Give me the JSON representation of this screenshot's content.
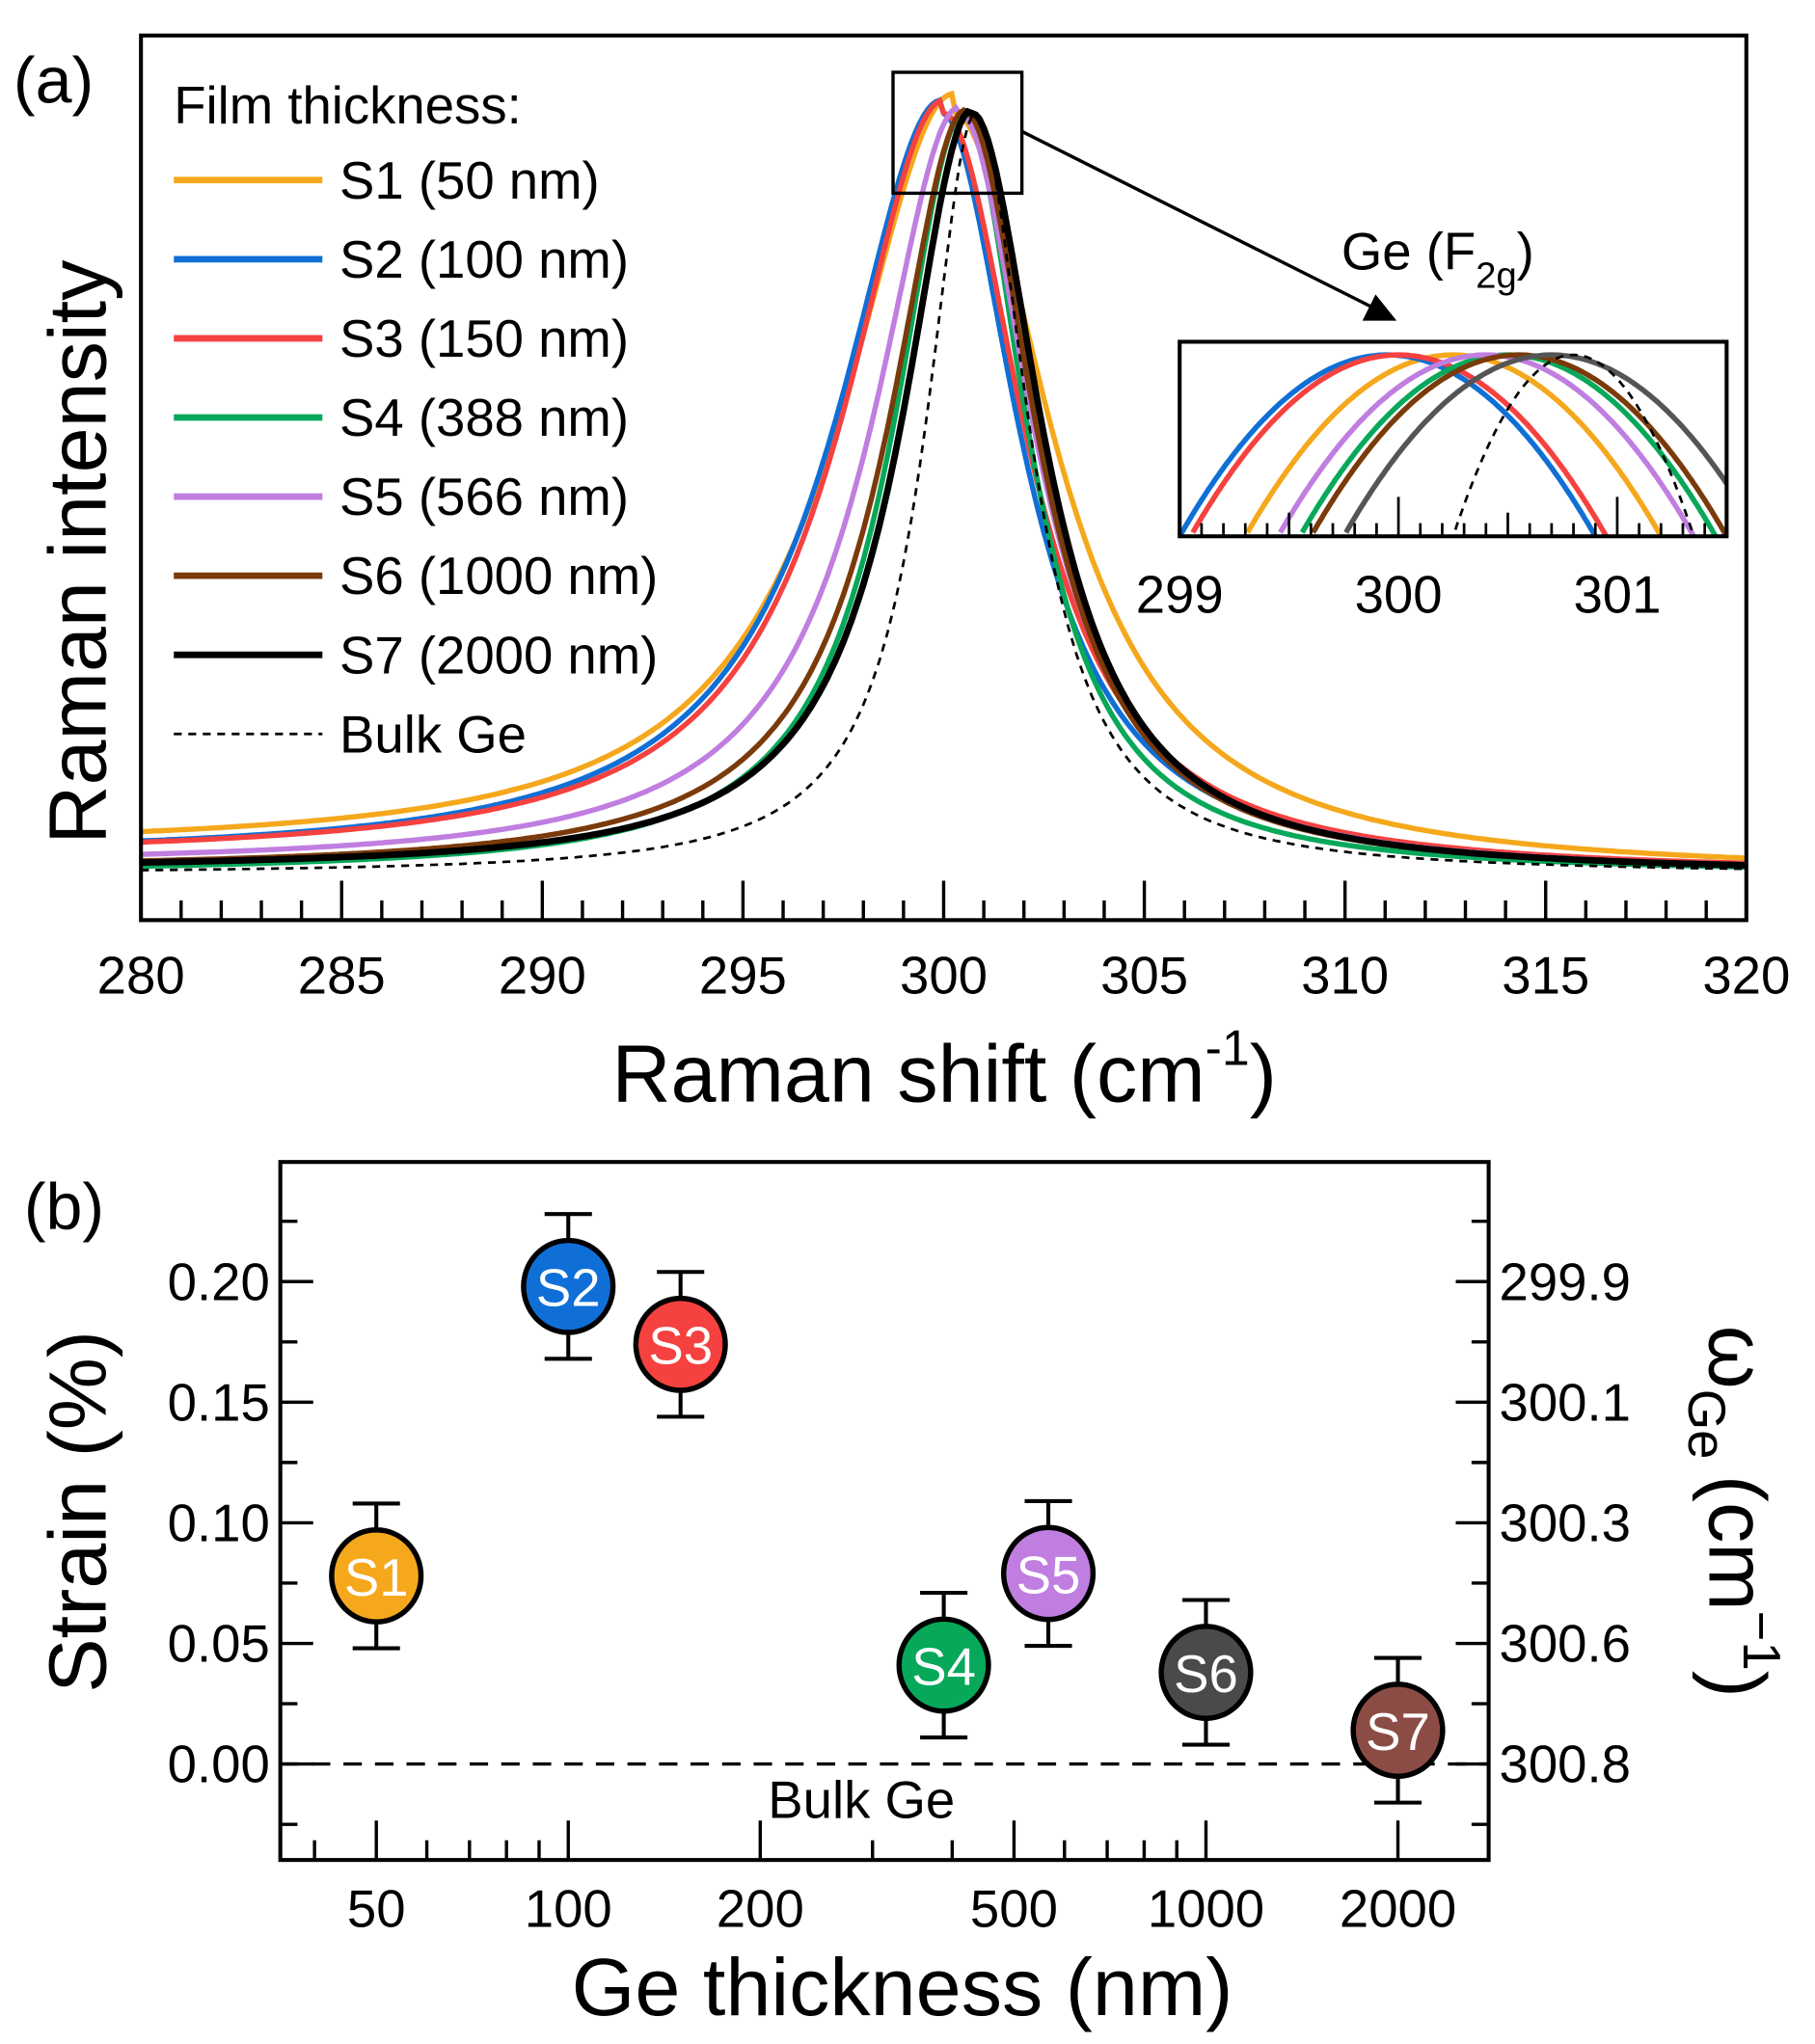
{
  "chart_data": [
    {
      "type": "line",
      "panel_label": "(a)",
      "xlabel": "Raman shift (cm",
      "xlabel_sup": "-1",
      "xlabel_close": ")",
      "ylabel": "Raman intensity",
      "xlim": [
        280,
        320
      ],
      "xticks": [
        "280",
        "285",
        "290",
        "295",
        "300",
        "305",
        "310",
        "315",
        "320"
      ],
      "legend_title": "Film thickness:",
      "legend_placement": "top-left",
      "series": [
        {
          "name": "S1 (50 nm)",
          "color": "#f5a81c",
          "peak": 300.25,
          "hwhm_left": 3.3,
          "hwhm_right": 2.9,
          "base_left": 0.03,
          "dash": false
        },
        {
          "name": "S2 (100 nm)",
          "color": "#0f6fd6",
          "peak": 299.95,
          "hwhm_left": 3.1,
          "hwhm_right": 2.3,
          "base_left": 0.02,
          "dash": false
        },
        {
          "name": "S3 (150 nm)",
          "color": "#f5413f",
          "peak": 300.0,
          "hwhm_left": 3.0,
          "hwhm_right": 2.4,
          "base_left": 0.02,
          "dash": false
        },
        {
          "name": "S4 (388 nm)",
          "color": "#07a85a",
          "peak": 300.5,
          "hwhm_left": 2.1,
          "hwhm_right": 1.9,
          "base_left": 0.0,
          "dash": false
        },
        {
          "name": "S5 (566 nm)",
          "color": "#c07ee0",
          "peak": 300.4,
          "hwhm_left": 2.6,
          "hwhm_right": 2.2,
          "base_left": 0.01,
          "dash": false
        },
        {
          "name": "S6 (1000 nm)",
          "color": "#7a3a0a",
          "peak": 300.55,
          "hwhm_left": 2.3,
          "hwhm_right": 2.1,
          "base_left": 0.005,
          "dash": false
        },
        {
          "name": "S7 (2000 nm)",
          "color": "#000000",
          "peak": 300.7,
          "hwhm_left": 2.1,
          "hwhm_right": 2.1,
          "base_left": 0.005,
          "dash": false,
          "inset_color": "#555555"
        },
        {
          "name": "Bulk Ge",
          "color": "#000000",
          "peak": 300.8,
          "hwhm_left": 1.5,
          "hwhm_right": 1.6,
          "base_left": 0.0,
          "dash": true
        }
      ],
      "inset": {
        "title": "Ge (F",
        "title_sub": "2g",
        "title_close": ")",
        "xlim": [
          299,
          301.5
        ],
        "xticks": [
          "299",
          "300",
          "301"
        ]
      }
    },
    {
      "type": "scatter",
      "panel_label": "(b)",
      "xlabel": "Ge thickness (nm)",
      "ylabel": "Strain (%)",
      "y2label": "ω",
      "y2label_sub": "Ge",
      "y2label_unit": "(cm",
      "y2label_sup": "−1",
      "y2label_close": ")",
      "xscale": "log",
      "xlim": [
        35,
        3000
      ],
      "ylim": [
        -0.025,
        0.245
      ],
      "xticks": [
        "50",
        "100",
        "200",
        "500",
        "1000",
        "2000"
      ],
      "yticks": [
        "0.00",
        "0.05",
        "0.10",
        "0.15",
        "0.20"
      ],
      "y2ticks": [
        "300.8",
        "300.6",
        "300.3",
        "300.1",
        "299.9"
      ],
      "reference_label": "Bulk Ge",
      "reference_value": 0.0,
      "points": [
        {
          "label": "S1",
          "x": 50,
          "y": 0.078,
          "err": 0.03,
          "color": "#f5a81c"
        },
        {
          "label": "S2",
          "x": 100,
          "y": 0.198,
          "err": 0.03,
          "color": "#0f6fd6"
        },
        {
          "label": "S3",
          "x": 150,
          "y": 0.174,
          "err": 0.03,
          "color": "#f5413f"
        },
        {
          "label": "S4",
          "x": 388,
          "y": 0.041,
          "err": 0.03,
          "color": "#07a85a"
        },
        {
          "label": "S5",
          "x": 566,
          "y": 0.079,
          "err": 0.03,
          "color": "#c07ee0"
        },
        {
          "label": "S6",
          "x": 1000,
          "y": 0.038,
          "err": 0.03,
          "color": "#4a4a4a"
        },
        {
          "label": "S7",
          "x": 2000,
          "y": 0.014,
          "err": 0.03,
          "color": "#8b4c45"
        }
      ]
    }
  ]
}
